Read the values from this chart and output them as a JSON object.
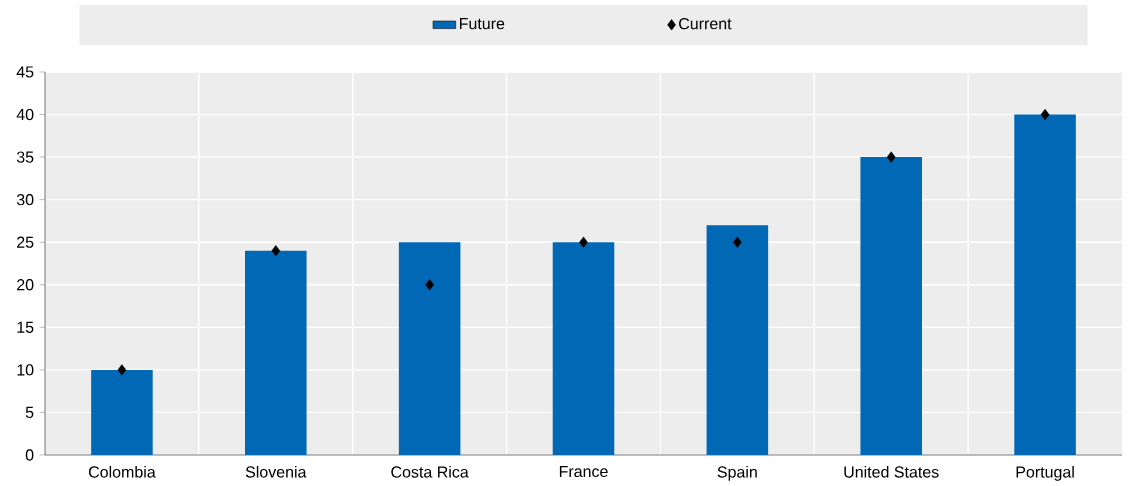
{
  "chart_data": {
    "type": "bar",
    "categories": [
      "Colombia",
      "Slovenia",
      "Costa Rica",
      "France",
      "Spain",
      "United States",
      "Portugal"
    ],
    "series": [
      {
        "name": "Future",
        "color": "#0068b5",
        "values": [
          10,
          24,
          25,
          25,
          27,
          35,
          40
        ]
      },
      {
        "name": "Current",
        "type": "scatter",
        "color": "#000000",
        "values": [
          10,
          24,
          20,
          25,
          25,
          35,
          40
        ]
      }
    ],
    "ylim": [
      0,
      45
    ],
    "yticks": [
      0,
      5,
      10,
      15,
      20,
      25,
      30,
      35,
      40,
      45
    ],
    "grid": true,
    "legend": "top",
    "marker": "diamond"
  }
}
